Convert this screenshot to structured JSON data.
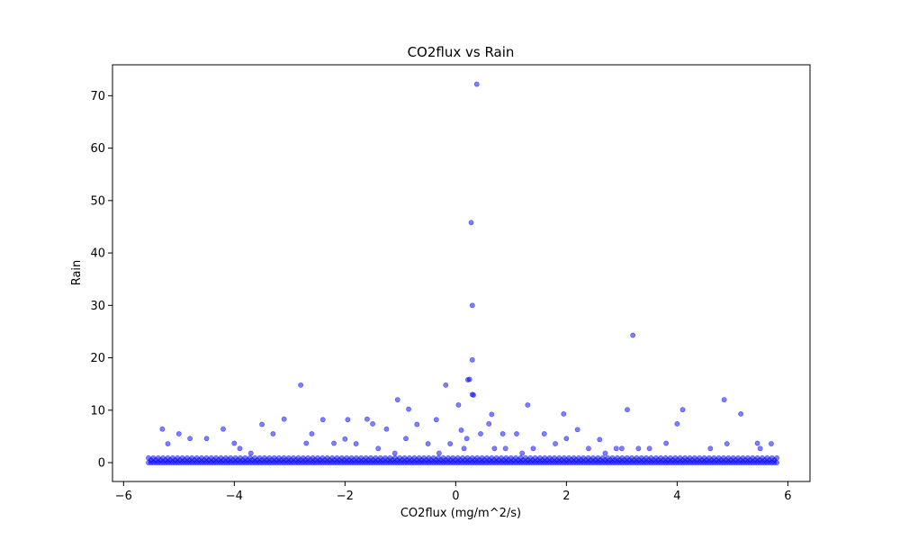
{
  "chart_data": {
    "type": "scatter",
    "title": "CO2flux vs Rain",
    "xlabel": "CO2flux (mg/m^2/s)",
    "ylabel": "Rain",
    "xlim": [
      -6.2,
      6.4
    ],
    "ylim": [
      -3.6,
      75.9
    ],
    "xticks": [
      -6,
      -4,
      -2,
      0,
      2,
      4,
      6
    ],
    "yticks": [
      0,
      10,
      20,
      30,
      40,
      50,
      60,
      70
    ],
    "xtick_labels": [
      "−6",
      "−4",
      "−2",
      "0",
      "2",
      "4",
      "6"
    ],
    "ytick_labels": [
      "0",
      "10",
      "20",
      "30",
      "40",
      "50",
      "60",
      "70"
    ],
    "grid": false,
    "legend": "none",
    "marker_color": "#0000ff",
    "marker_alpha": 0.5,
    "series": [
      {
        "x": [
          0.38,
          0.28,
          0.3,
          3.2,
          0.3,
          -2.8,
          0.22,
          0.25,
          0.3,
          0.32,
          -1.05,
          -0.18,
          0.05,
          4.85,
          4.1,
          5.15,
          1.3,
          -0.85,
          3.1,
          1.95,
          -1.6,
          -3.1,
          -1.95,
          -2.4,
          0.65,
          0.6,
          4.0,
          1.6,
          -5.3,
          -4.2,
          -3.5,
          -1.25,
          -0.7,
          0.1,
          2.2,
          -0.35,
          0.85,
          -4.5,
          -2.6,
          3.8,
          5.45,
          -5.0,
          -1.5,
          2.6,
          -3.3,
          -0.9,
          1.1,
          0.45,
          2.0,
          -2.2,
          3.0,
          -4.8,
          1.8,
          4.6,
          -1.8,
          0.2,
          -0.5,
          2.9,
          5.7,
          -3.9,
          -2.7,
          1.4,
          0.9,
          -0.1,
          3.5,
          -4.0,
          4.9,
          -1.4,
          2.4,
          -5.2,
          0.7,
          -2.0,
          1.2,
          5.5,
          -3.7,
          3.3,
          -0.3,
          0.15,
          -1.1,
          2.7
        ],
        "y": [
          72.2,
          45.8,
          30.0,
          24.3,
          19.6,
          14.8,
          15.8,
          15.9,
          13.0,
          12.9,
          12.0,
          14.8,
          11.0,
          12.0,
          10.1,
          9.3,
          11.0,
          10.2,
          10.1,
          9.3,
          8.3,
          8.3,
          8.2,
          8.2,
          9.2,
          7.4,
          7.4,
          5.5,
          6.4,
          6.4,
          7.3,
          6.4,
          7.3,
          6.2,
          6.3,
          8.2,
          5.5,
          4.6,
          5.5,
          3.7,
          3.7,
          5.5,
          7.4,
          4.4,
          5.5,
          4.6,
          5.5,
          5.5,
          4.6,
          3.7,
          2.7,
          4.6,
          3.6,
          2.7,
          3.6,
          4.6,
          3.6,
          2.7,
          3.6,
          2.7,
          3.7,
          2.7,
          2.7,
          3.6,
          2.7,
          3.7,
          3.6,
          2.7,
          2.7,
          3.6,
          2.7,
          4.5,
          1.8,
          2.7,
          1.8,
          2.7,
          1.8,
          2.7,
          1.8,
          1.8
        ]
      }
    ],
    "baseline_dense_band": {
      "x_range": [
        -5.55,
        5.8
      ],
      "y_values": [
        0,
        0.5,
        0.9
      ]
    }
  }
}
